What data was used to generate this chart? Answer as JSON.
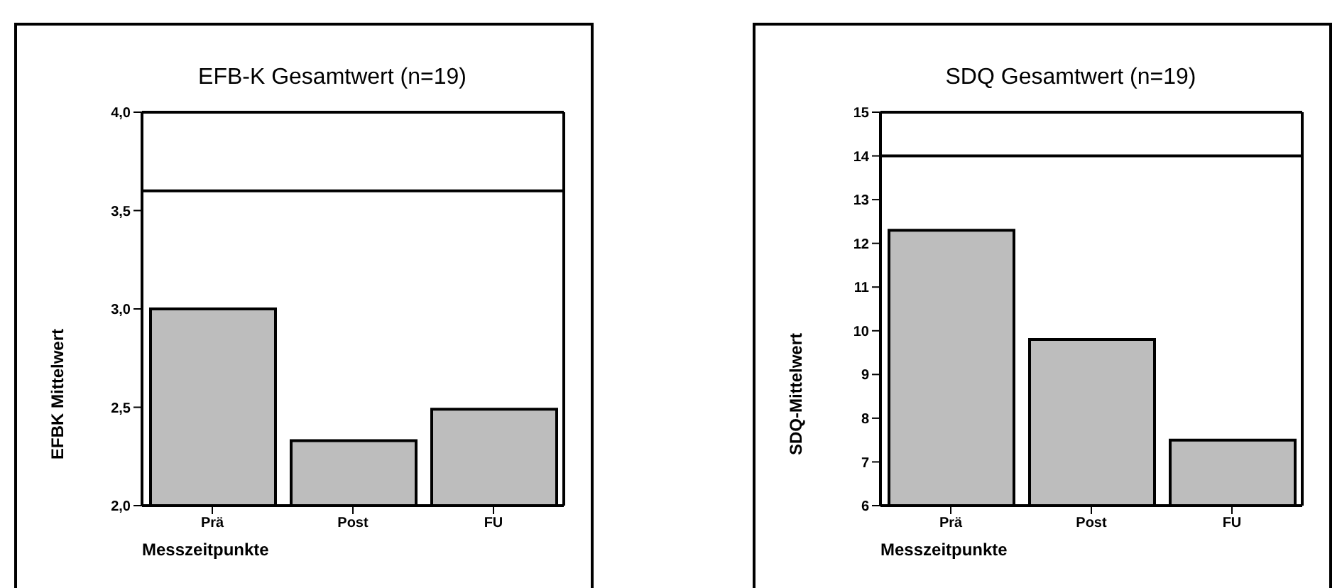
{
  "chart_data": [
    {
      "type": "bar",
      "title": "EFB-K Gesamtwert (n=19)",
      "xlabel": "Messzeitpunkte",
      "ylabel": "EFBK Mittelwert",
      "categories": [
        "Prä",
        "Post",
        "FU"
      ],
      "values": [
        3.0,
        2.33,
        2.49
      ],
      "color": "#bdbdbd",
      "ylim": [
        2,
        4
      ],
      "yticks": [
        {
          "value": 2,
          "label": "2,0"
        },
        {
          "value": 2.5,
          "label": "2,5"
        },
        {
          "value": 3,
          "label": "3,0"
        },
        {
          "value": 3.5,
          "label": "3,5"
        },
        {
          "value": 4,
          "label": "4,0"
        }
      ],
      "ref_lines": [
        {
          "axis": "y",
          "value": 3.6,
          "label": null,
          "color": "#000000"
        }
      ],
      "grid": false,
      "legend": false
    },
    {
      "type": "bar",
      "title": "SDQ Gesamtwert (n=19)",
      "xlabel": "Messzeitpunkte",
      "ylabel": "SDQ-Mittelwert",
      "categories": [
        "Prä",
        "Post",
        "FU"
      ],
      "values": [
        12.3,
        9.8,
        7.5
      ],
      "color": "#bdbdbd",
      "ylim": [
        6,
        15
      ],
      "yticks": [
        6,
        7,
        8,
        9,
        10,
        11,
        12,
        13,
        14,
        15
      ],
      "ref_lines": [
        {
          "axis": "y",
          "value": 14,
          "label": null,
          "color": "#000000"
        }
      ],
      "grid": false,
      "legend": false
    }
  ]
}
